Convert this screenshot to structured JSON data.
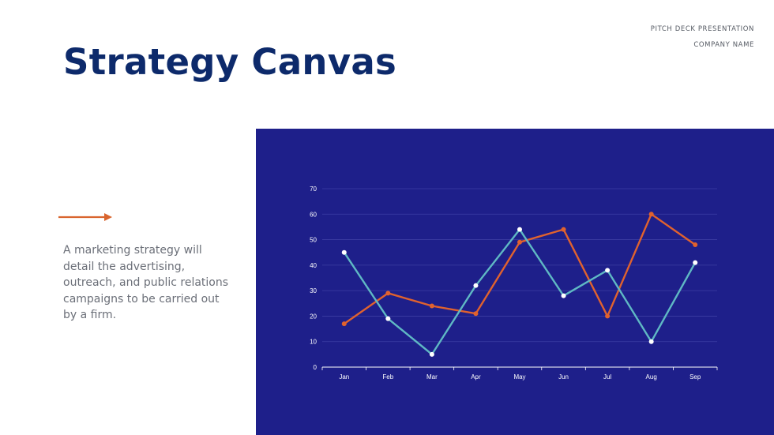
{
  "header": {
    "line1": "PITCH DECK PRESENTATION",
    "line2": "COMPANY NAME"
  },
  "title": "Strategy Canvas",
  "body_text": "A marketing strategy will detail the advertising, outreach, and public relations campaigns to be carried out by a firm.",
  "colors": {
    "title": "#0d2a6b",
    "accent_arrow": "#d9652e",
    "chart_bg": "#1e1f8a",
    "series_teal": "#5fb8c4",
    "series_orange": "#e0622e",
    "markers_white": "#ffffff"
  },
  "chart_data": {
    "type": "line",
    "categories": [
      "Jan",
      "Feb",
      "Mar",
      "Apr",
      "May",
      "Jun",
      "Jul",
      "Aug",
      "Sep"
    ],
    "ylim": [
      0,
      70
    ],
    "yticks": [
      0,
      10,
      20,
      30,
      40,
      50,
      60,
      70
    ],
    "grid": true,
    "series": [
      {
        "color": "#e0622e",
        "values": [
          17,
          29,
          24,
          21,
          49,
          54,
          20,
          60,
          48
        ],
        "marker_values": [
          45,
          19,
          5,
          32,
          54,
          28,
          38,
          10,
          41
        ],
        "marker_color": "#ffffff"
      },
      {
        "color": "#5fb8c4",
        "values": [
          45,
          19,
          5,
          32,
          54,
          28,
          38,
          10,
          41
        ],
        "marker_values": [
          17,
          29,
          24,
          21,
          49,
          54,
          20,
          60,
          48
        ],
        "marker_color": "#e0622e"
      }
    ]
  }
}
